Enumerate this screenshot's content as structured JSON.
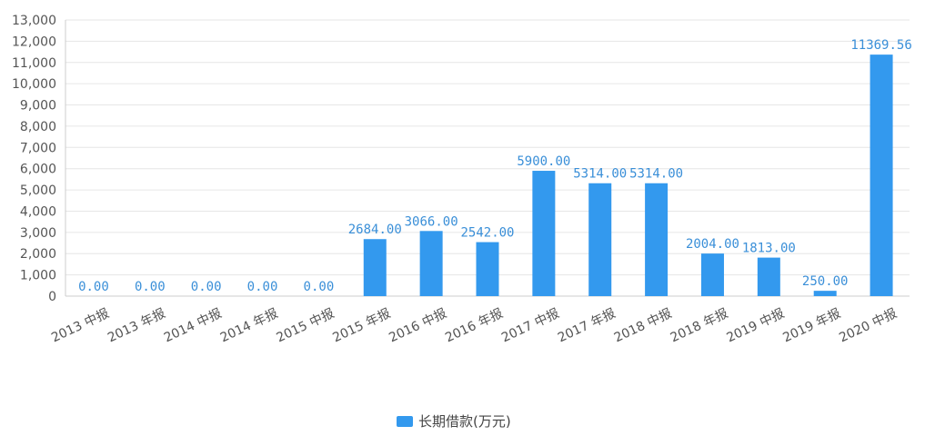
{
  "chart_data": {
    "type": "bar",
    "categories": [
      "2013 中报",
      "2013 年报",
      "2014 中报",
      "2014 年报",
      "2015 中报",
      "2015 年报",
      "2016 中报",
      "2016 年报",
      "2017 中报",
      "2017 年报",
      "2018 中报",
      "2018 年报",
      "2019 中报",
      "2019 年报",
      "2020 中报"
    ],
    "series": [
      {
        "name": "长期借款(万元)",
        "values": [
          0,
          0,
          0,
          0,
          0,
          2684,
          3066,
          2542,
          5900,
          5314,
          5314,
          2004,
          1813,
          250,
          11369.56
        ],
        "labels": [
          "0.00",
          "0.00",
          "0.00",
          "0.00",
          "0.00",
          "2684.00",
          "3066.00",
          "2542.00",
          "5900.00",
          "5314.00",
          "5314.00",
          "2004.00",
          "1813.00",
          "250.00",
          "11369.56"
        ]
      }
    ],
    "ylim": [
      0,
      13000
    ],
    "yticks": [
      "0",
      "1,000",
      "2,000",
      "3,000",
      "4,000",
      "5,000",
      "6,000",
      "7,000",
      "8,000",
      "9,000",
      "10,000",
      "11,000",
      "12,000",
      "13,000"
    ],
    "grid": true,
    "legend": "bottom",
    "bar_color": "#3399ee",
    "grid_color": "#e6e6e6",
    "axis_color": "#cccccc"
  }
}
